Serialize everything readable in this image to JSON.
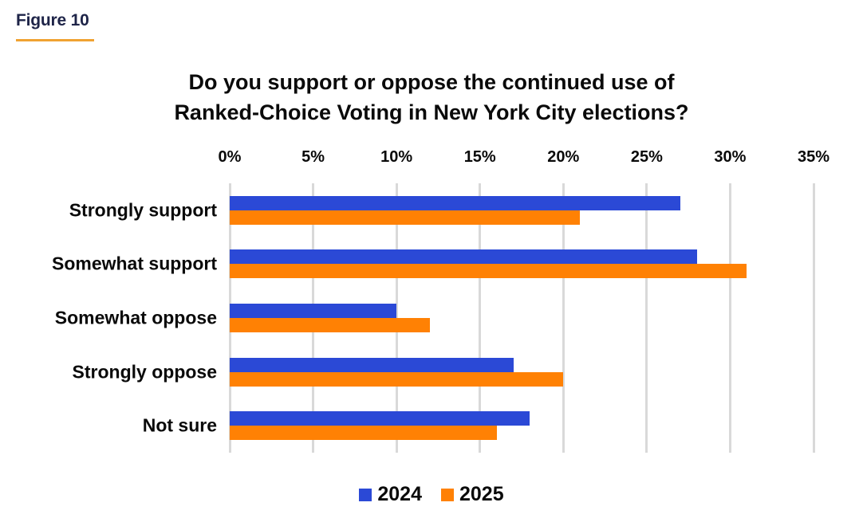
{
  "figure_label": "Figure 10",
  "title": {
    "line1": "Do you support or oppose the continued use of",
    "line2": "Ranked-Choice Voting in New York City elections?"
  },
  "chart_data": {
    "type": "bar",
    "orientation": "horizontal",
    "title": "Do you support or oppose the continued use of Ranked-Choice Voting in New York City elections?",
    "categories": [
      "Strongly support",
      "Somewhat support",
      "Somewhat oppose",
      "Strongly oppose",
      "Not sure"
    ],
    "series": [
      {
        "name": "2024",
        "color": "#2B49D6",
        "values": [
          27,
          28,
          10,
          17,
          18
        ]
      },
      {
        "name": "2025",
        "color": "#FF8104",
        "values": [
          21,
          31,
          12,
          20,
          16
        ]
      }
    ],
    "xlim": [
      0,
      35
    ],
    "tick_step": 5,
    "tick_labels": [
      "0%",
      "5%",
      "10%",
      "15%",
      "20%",
      "25%",
      "30%",
      "35%"
    ],
    "unit": "%",
    "grid": true,
    "legend_position": "bottom"
  },
  "colors": {
    "series_2024": "#2B49D6",
    "series_2025": "#FF8104",
    "gridline": "#d9d9d9",
    "figure_label_text": "#1e2448",
    "figure_label_underline": "#f0a232",
    "title_text": "#0a0a0a"
  }
}
